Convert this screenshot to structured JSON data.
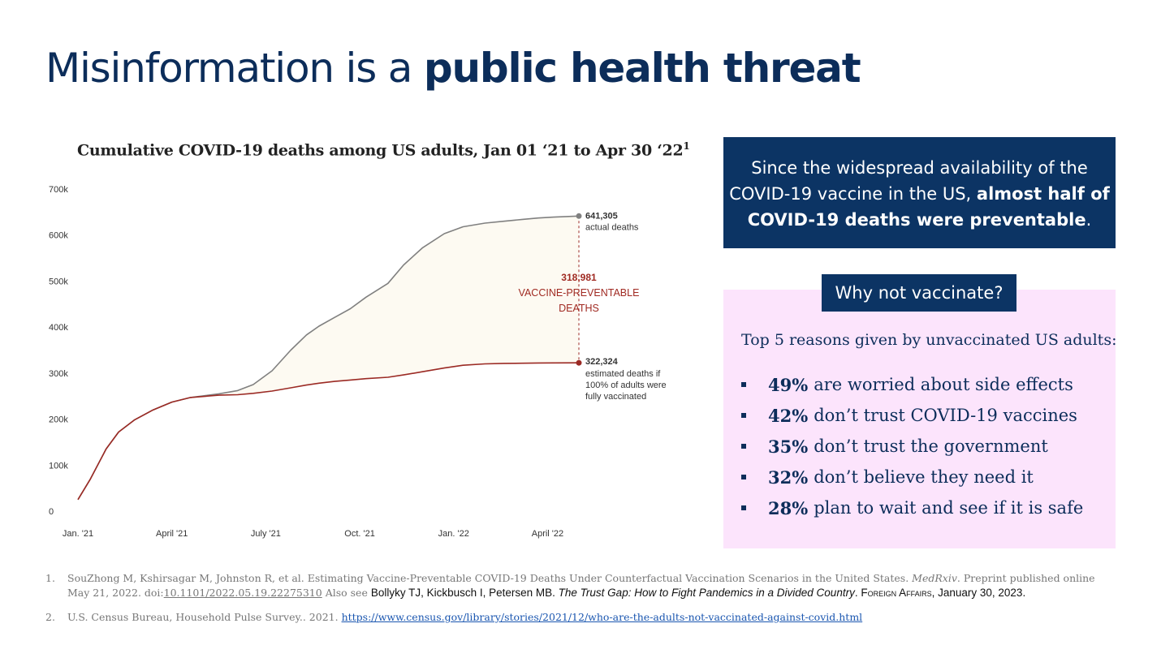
{
  "slide": {
    "title_normal": "Misinformation is a ",
    "title_bold": "public health threat"
  },
  "chart_title": {
    "text": "Cumulative COVID-19 deaths among US adults, Jan 01 ‘21 to Apr 30 ‘22",
    "sup": "1"
  },
  "chart_data": {
    "type": "line",
    "title": "Cumulative COVID-19 deaths among US adults, Jan 01 ‘21 to Apr 30 ‘22",
    "x_tick_labels": [
      "Jan. '21",
      "April '21",
      "July '21",
      "Oct. '21",
      "Jan. '22",
      "April '22"
    ],
    "y_tick_labels": [
      "0",
      "100k",
      "200k",
      "300k",
      "400k",
      "500k",
      "600k",
      "700k"
    ],
    "x_unit": "months since Jan 2021",
    "ylim": [
      0,
      700000
    ],
    "xlim": [
      0,
      16
    ],
    "grid": false,
    "series": [
      {
        "name": "actual deaths",
        "color": "#808080",
        "x": [
          0,
          0.4,
          0.9,
          1.3,
          1.8,
          2.4,
          3.0,
          3.6,
          4.5,
          5.1,
          5.6,
          6.2,
          6.8,
          7.3,
          7.7,
          8.2,
          8.7,
          9.2,
          9.9,
          10.4,
          11.0,
          11.7,
          12.3,
          13.0,
          13.6,
          14.2,
          14.7,
          15.2,
          16.0
        ],
        "y": [
          25000,
          70000,
          135000,
          172000,
          198000,
          220000,
          237000,
          247000,
          255000,
          262000,
          275000,
          305000,
          350000,
          383000,
          402000,
          421000,
          440000,
          465000,
          495000,
          535000,
          572000,
          603000,
          618000,
          626000,
          630000,
          634000,
          637000,
          639000,
          641305
        ]
      },
      {
        "name": "estimated deaths if 100% of adults were fully vaccinated",
        "color": "#9b2a24",
        "x": [
          0,
          0.4,
          0.9,
          1.3,
          1.8,
          2.4,
          3.0,
          3.6,
          4.5,
          5.1,
          5.6,
          6.2,
          6.8,
          7.3,
          7.7,
          8.2,
          8.7,
          9.2,
          9.9,
          10.4,
          11.0,
          11.7,
          12.3,
          13.0,
          13.6,
          14.2,
          14.7,
          15.2,
          16.0
        ],
        "y": [
          25000,
          70000,
          135000,
          172000,
          198000,
          220000,
          237000,
          247000,
          252000,
          253000,
          256000,
          261000,
          268000,
          274000,
          278000,
          282000,
          285000,
          288000,
          291000,
          296000,
          303000,
          311000,
          317000,
          320000,
          321000,
          321500,
          322000,
          322100,
          322324
        ]
      }
    ],
    "annotations": {
      "actual_value": "641,305",
      "actual_label": "actual deaths",
      "diff_value": "318,981",
      "diff_label_1": "VACCINE-PREVENTABLE",
      "diff_label_2": "DEATHS",
      "vacc_value": "322,324",
      "vacc_label_1": "estimated deaths if",
      "vacc_label_2": "100% of adults were",
      "vacc_label_3": "fully vaccinated"
    },
    "colors": {
      "actual": "#808080",
      "vaccinated": "#9b2a24",
      "gap_fill": "#fdfaf2",
      "axis_text": "#333333"
    }
  },
  "callout": {
    "line1": "Since the widespread availability of the",
    "line2_normal": "COVID-19 vaccine in the US, ",
    "line2_bold": "almost half of",
    "line3_bold": "COVID-19 deaths were preventable",
    "line3_tail": "."
  },
  "reasons_box": {
    "tag": "Why not vaccinate?",
    "heading": "Top 5 reasons given by unvaccinated US adults:",
    "items": [
      {
        "pct": "49%",
        "text": "are worried about side effects"
      },
      {
        "pct": "42%",
        "text": "don’t trust COVID-19 vaccines"
      },
      {
        "pct": "35%",
        "text": "don’t trust the government"
      },
      {
        "pct": "32%",
        "text": "don’t believe they need it"
      },
      {
        "pct": "28%",
        "text": "plan to wait and see if it is safe"
      }
    ]
  },
  "references": {
    "ref1_num": "1.",
    "ref1_text_a": "SouZhong M, Kshirsagar M, Johnston R, et al. Estimating Vaccine-Preventable COVID-19 Deaths Under Counterfactual Vaccination Scenarios in the United States. ",
    "ref1_journal": "MedRxiv",
    "ref1_text_b": ". Preprint published online May 21, 2022. doi:",
    "ref1_doi": "10.1101/2022.05.19.22275310",
    "ref1_also": " Also see ",
    "ref1_authors": "Bollyky TJ, Kickbusch I, Petersen MB. ",
    "ref1_book": "The Trust Gap: How to Fight Pandemics in a Divided Country",
    "ref1_dot": ". ",
    "ref1_pub": "Foreign Affairs",
    "ref1_date": ", January 30, 2023.",
    "ref2_num": "2.",
    "ref2_text": "U.S. Census Bureau, Household Pulse Survey.. 2021. ",
    "ref2_link": "https://www.census.gov/library/stories/2021/12/who-are-the-adults-not-vaccinated-against-covid.html"
  }
}
